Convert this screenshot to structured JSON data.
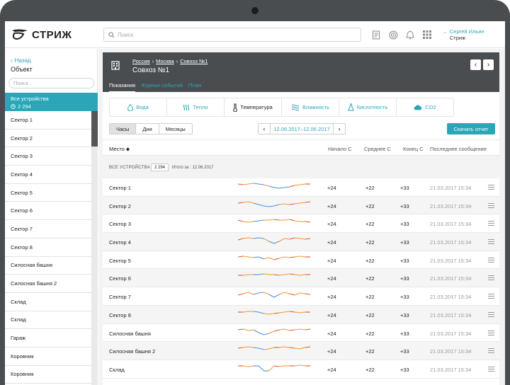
{
  "app": {
    "logo_text": "СТРИЖ",
    "search_placeholder": "Поиск",
    "user": {
      "name": "Сергей Ильин",
      "org": "Стриж"
    }
  },
  "sidebar": {
    "back_label": "Назад",
    "title": "Объект",
    "search_placeholder": "Поиск",
    "all_devices": {
      "label": "Все устройства",
      "count": "2 294"
    },
    "items": [
      "Сектор 1",
      "Сектор 2",
      "Сектор 3",
      "Сектор 4",
      "Сектор 5",
      "Сектор 6",
      "Сектор 7",
      "Сектор 8",
      "Силосная башня",
      "Силосная башня 2",
      "Склад",
      "Склад",
      "Гараж",
      "Коровник",
      "Коровник"
    ]
  },
  "object": {
    "breadcrumbs": [
      "Россия",
      "Москва",
      "Совхоз №1"
    ],
    "title": "Совхоз №1",
    "tabs": [
      "Показания",
      "Журнал событий",
      "План"
    ]
  },
  "metrics": [
    {
      "label": "Вода",
      "icon": "water-drop-icon"
    },
    {
      "label": "Тепло",
      "icon": "heat-waves-icon"
    },
    {
      "label": "Температура",
      "icon": "thermometer-icon",
      "active": true
    },
    {
      "label": "Влажность",
      "icon": "humidity-icon"
    },
    {
      "label": "Кислотность",
      "icon": "flask-icon"
    },
    {
      "label": "CO2",
      "icon": "cloud-icon"
    }
  ],
  "controls": {
    "period_options": [
      "Часы",
      "Дни",
      "Месяцы"
    ],
    "selected_period": "Часы",
    "date_range": "12.06.2017–12.06.2017",
    "download_label": "Скачать отчет"
  },
  "table": {
    "headers": {
      "place": "Место",
      "start": "Начало С",
      "avg": "Среднее С",
      "end": "Конец С",
      "last": "Последнее сообщение"
    },
    "group": {
      "label": "ВСЕ УСТРОЙСТВА",
      "count": "2 294",
      "total": "Итого за : 12.06.2017"
    },
    "rows": [
      {
        "name": "Сектор 1",
        "start": "+24",
        "avg": "+22",
        "end": "+33",
        "last": "21.03.2017 15:34"
      },
      {
        "name": "Сектор 2",
        "start": "+24",
        "avg": "+22",
        "end": "+33",
        "last": "21.03.2017 15:34"
      },
      {
        "name": "Сектор 3",
        "start": "+24",
        "avg": "+22",
        "end": "+33",
        "last": "21.03.2017 15:34"
      },
      {
        "name": "Сектор 4",
        "start": "+24",
        "avg": "+22",
        "end": "+33",
        "last": "21.03.2017 15:34"
      },
      {
        "name": "Сектор 5",
        "start": "+24",
        "avg": "+22",
        "end": "+33",
        "last": "21.03.2017 15:34"
      },
      {
        "name": "Сектор 6",
        "start": "+24",
        "avg": "+22",
        "end": "+33",
        "last": "21.03.2017 15:34"
      },
      {
        "name": "Сектор 7",
        "start": "+24",
        "avg": "+22",
        "end": "+33",
        "last": "21.03.2017 15:34"
      },
      {
        "name": "Сектор 8",
        "start": "+24",
        "avg": "+22",
        "end": "+33",
        "last": "21.03.2017 15:34"
      },
      {
        "name": "Силосная башня",
        "start": "+24",
        "avg": "+22",
        "end": "+33",
        "last": "21.03.2017 15:34"
      },
      {
        "name": "Силосная башня 2",
        "start": "+24",
        "avg": "+22",
        "end": "+33",
        "last": "21.03.2017 15:34"
      },
      {
        "name": "Склад",
        "start": "+24",
        "avg": "+22",
        "end": "+33",
        "last": "21.03.2017 15:34"
      }
    ]
  },
  "colors": {
    "accent": "#2aa6b8",
    "header_bg": "#4a4d50",
    "spark_warm": "#f29a2e",
    "spark_hot": "#e8503a",
    "spark_cool": "#4a90d9"
  }
}
